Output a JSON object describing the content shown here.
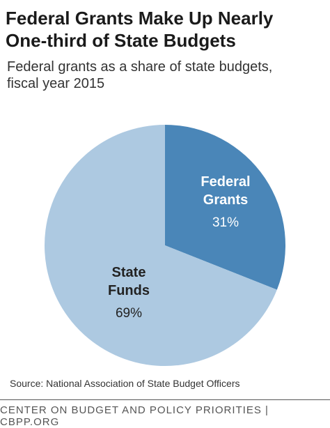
{
  "header": {
    "title_line1": "Federal Grants Make Up Nearly",
    "title_line2": "One-third of State Budgets",
    "subtitle_line1": "Federal grants as a share of state budgets,",
    "subtitle_line2": "fiscal year 2015"
  },
  "chart_data": {
    "type": "pie",
    "slices": [
      {
        "name_lines": [
          "Federal",
          "Grants"
        ],
        "value": 31,
        "label": "31%",
        "color": "#4a86b8",
        "label_color": "#ffffff"
      },
      {
        "name_lines": [
          "State",
          "Funds"
        ],
        "value": 69,
        "label": "69%",
        "color": "#adc9e1",
        "label_color": "#222222"
      }
    ]
  },
  "footer": {
    "source": "Source: National Association of State Budget Officers",
    "org": "CENTER ON BUDGET AND POLICY PRIORITIES | CBPP.ORG"
  }
}
